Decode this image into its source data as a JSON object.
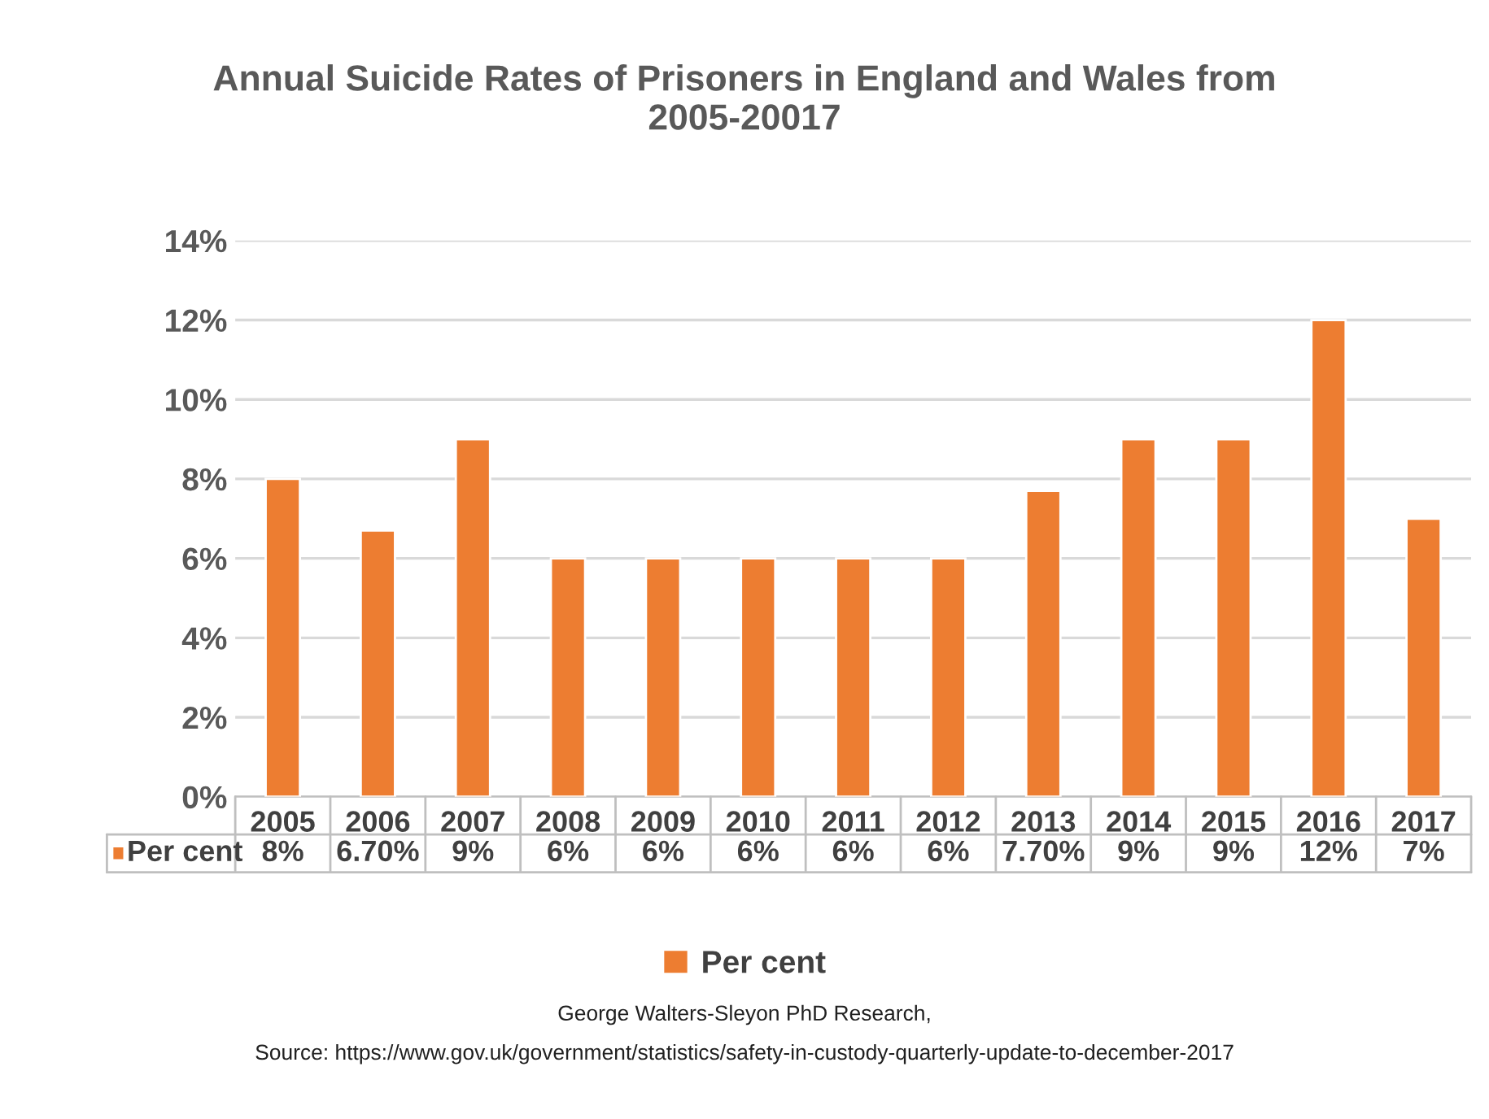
{
  "chart_data": {
    "type": "bar",
    "title": "Annual Suicide Rates of Prisoners in England and Wales from 2005-20017",
    "categories": [
      "2005",
      "2006",
      "2007",
      "2008",
      "2009",
      "2010",
      "2011",
      "2012",
      "2013",
      "2014",
      "2015",
      "2016",
      "2017"
    ],
    "series": [
      {
        "name": "Per cent",
        "color": "#ed7d31",
        "values": [
          8,
          6.7,
          9,
          6,
          6,
          6,
          6,
          6,
          7.7,
          9,
          9,
          12,
          7
        ],
        "value_labels": [
          "8%",
          "6.70%",
          "9%",
          "6%",
          "6%",
          "6%",
          "6%",
          "6%",
          "7.70%",
          "9%",
          "9%",
          "12%",
          "7%"
        ]
      }
    ],
    "ylim": [
      0,
      14
    ],
    "yticks": [
      {
        "value": 0,
        "label": "0%"
      },
      {
        "value": 2,
        "label": "2%"
      },
      {
        "value": 4,
        "label": "4%"
      },
      {
        "value": 6,
        "label": "6%"
      },
      {
        "value": 8,
        "label": "8%"
      },
      {
        "value": 10,
        "label": "10%"
      },
      {
        "value": 12,
        "label": "12%"
      },
      {
        "value": 14,
        "label": "14%"
      }
    ],
    "grid": "y",
    "legend": "bottom",
    "annotations": [
      "George Walters-Sleyon PhD Research,",
      "Source: https://www.gov.uk/government/statistics/safety-in-custody-quarterly-update-to-december-2017"
    ]
  }
}
